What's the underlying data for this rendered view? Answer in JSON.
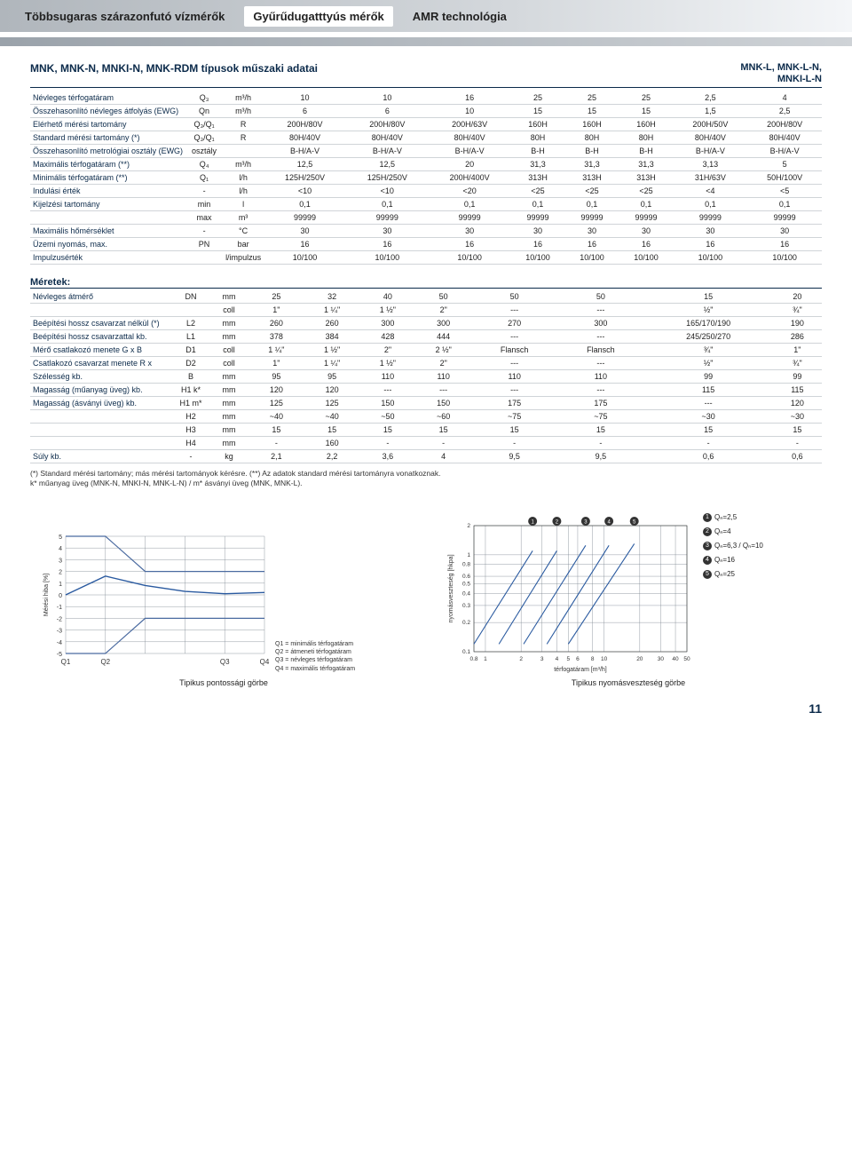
{
  "header": {
    "tabs": [
      "Többsugaras szárazonfutó vízmérők",
      "Gyűrűdugatttyús mérők",
      "AMR technológia"
    ]
  },
  "title": "MNK, MNK-N, MNKI-N, MNK-RDM típusok műszaki adatai",
  "right_title": "MNK-L, MNK-L-N,\nMNKI-L-N",
  "spec_table": {
    "rows": [
      {
        "label": "Névleges térfogatáram",
        "sym": "Q₃",
        "unit": "m³/h",
        "v": [
          "10",
          "10",
          "16",
          "25",
          "25",
          "25",
          "2,5",
          "4"
        ]
      },
      {
        "label": "Összehasonlító névleges átfolyás (EWG)",
        "sym": "Qn",
        "unit": "m³/h",
        "v": [
          "6",
          "6",
          "10",
          "15",
          "15",
          "15",
          "1,5",
          "2,5"
        ]
      },
      {
        "label": "Elérhető mérési tartomány",
        "sym": "Q₃/Q₁",
        "unit": "R",
        "v": [
          "200H/80V",
          "200H/80V",
          "200H/63V",
          "160H",
          "160H",
          "160H",
          "200H/50V",
          "200H/80V"
        ]
      },
      {
        "label": "Standard mérési tartomány (*)",
        "sym": "Q₃/Q₁",
        "unit": "R",
        "v": [
          "80H/40V",
          "80H/40V",
          "80H/40V",
          "80H",
          "80H",
          "80H",
          "80H/40V",
          "80H/40V"
        ]
      },
      {
        "label": "Összehasonlító metrológiai osztály (EWG)",
        "sym": "osztály",
        "unit": "",
        "v": [
          "B-H/A-V",
          "B-H/A-V",
          "B-H/A-V",
          "B-H",
          "B-H",
          "B-H",
          "B-H/A-V",
          "B-H/A-V"
        ]
      },
      {
        "label": "Maximális térfogatáram (**)",
        "sym": "Q₄",
        "unit": "m³/h",
        "v": [
          "12,5",
          "12,5",
          "20",
          "31,3",
          "31,3",
          "31,3",
          "3,13",
          "5"
        ]
      },
      {
        "label": "Minimális térfogatáram (**)",
        "sym": "Q₁",
        "unit": "l/h",
        "v": [
          "125H/250V",
          "125H/250V",
          "200H/400V",
          "313H",
          "313H",
          "313H",
          "31H/63V",
          "50H/100V"
        ]
      },
      {
        "label": "Indulási érték",
        "sym": "-",
        "unit": "l/h",
        "v": [
          "<10",
          "<10",
          "<20",
          "<25",
          "<25",
          "<25",
          "<4",
          "<5"
        ]
      },
      {
        "label": "Kijelzési tartomány",
        "sym": "min",
        "unit": "l",
        "v": [
          "0,1",
          "0,1",
          "0,1",
          "0,1",
          "0,1",
          "0,1",
          "0,1",
          "0,1"
        ]
      },
      {
        "label": "",
        "sym": "max",
        "unit": "m³",
        "v": [
          "99999",
          "99999",
          "99999",
          "99999",
          "99999",
          "99999",
          "99999",
          "99999"
        ]
      },
      {
        "label": "Maximális hőmérséklet",
        "sym": "-",
        "unit": "°C",
        "v": [
          "30",
          "30",
          "30",
          "30",
          "30",
          "30",
          "30",
          "30"
        ]
      },
      {
        "label": "Üzemi nyomás, max.",
        "sym": "PN",
        "unit": "bar",
        "v": [
          "16",
          "16",
          "16",
          "16",
          "16",
          "16",
          "16",
          "16"
        ]
      },
      {
        "label": "Impulzusérték",
        "sym": "",
        "unit": "l/impulzus",
        "v": [
          "10/100",
          "10/100",
          "10/100",
          "10/100",
          "10/100",
          "10/100",
          "10/100",
          "10/100"
        ]
      }
    ]
  },
  "dim_title": "Méretek:",
  "dim_table": {
    "rows": [
      {
        "label": "Névleges átmérő",
        "sym": "DN",
        "unit": "mm",
        "v": [
          "25",
          "32",
          "40",
          "50",
          "50",
          "50",
          "15",
          "20"
        ]
      },
      {
        "label": "",
        "sym": "",
        "unit": "coll",
        "v": [
          "1\"",
          "1 ¼\"",
          "1 ½\"",
          "2\"",
          "---",
          "---",
          "½\"",
          "¾\""
        ]
      },
      {
        "label": "Beépítési hossz csavarzat nélkül (*)",
        "sym": "L2",
        "unit": "mm",
        "v": [
          "260",
          "260",
          "300",
          "300",
          "270",
          "300",
          "165/170/190",
          "190"
        ]
      },
      {
        "label": "Beépítési hossz csavarzattal kb.",
        "sym": "L1",
        "unit": "mm",
        "v": [
          "378",
          "384",
          "428",
          "444",
          "---",
          "---",
          "245/250/270",
          "286"
        ]
      },
      {
        "label": "Mérő csatlakozó menete G x B",
        "sym": "D1",
        "unit": "coll",
        "v": [
          "1 ¼\"",
          "1 ½\"",
          "2\"",
          "2 ½\"",
          "Flansch",
          "Flansch",
          "¾\"",
          "1\""
        ]
      },
      {
        "label": "Csatlakozó csavarzat menete R x",
        "sym": "D2",
        "unit": "coll",
        "v": [
          "1\"",
          "1 ¼\"",
          "1 ½\"",
          "2\"",
          "---",
          "---",
          "½\"",
          "¾\""
        ]
      },
      {
        "label": "Szélesség kb.",
        "sym": "B",
        "unit": "mm",
        "v": [
          "95",
          "95",
          "110",
          "110",
          "110",
          "110",
          "99",
          "99"
        ]
      },
      {
        "label": "Magasság (műanyag üveg) kb.",
        "sym": "H1 k*",
        "unit": "mm",
        "v": [
          "120",
          "120",
          "---",
          "---",
          "---",
          "---",
          "115",
          "115"
        ]
      },
      {
        "label": "Magasság (ásványi üveg) kb.",
        "sym": "H1 m*",
        "unit": "mm",
        "v": [
          "125",
          "125",
          "150",
          "150",
          "175",
          "175",
          "---",
          "120"
        ]
      },
      {
        "label": "",
        "sym": "H2",
        "unit": "mm",
        "v": [
          "~40",
          "~40",
          "~50",
          "~60",
          "~75",
          "~75",
          "~30",
          "~30"
        ]
      },
      {
        "label": "",
        "sym": "H3",
        "unit": "mm",
        "v": [
          "15",
          "15",
          "15",
          "15",
          "15",
          "15",
          "15",
          "15"
        ]
      },
      {
        "label": "",
        "sym": "H4",
        "unit": "mm",
        "v": [
          "-",
          "160",
          "-",
          "-",
          "-",
          "-",
          "-",
          "-"
        ]
      },
      {
        "label": "Súly kb.",
        "sym": "-",
        "unit": "kg",
        "v": [
          "2,1",
          "2,2",
          "3,6",
          "4",
          "9,5",
          "9,5",
          "0,6",
          "0,6"
        ]
      }
    ]
  },
  "footnote": "(*) Standard mérési tartomány; más mérési tartományok kérésre. (**) Az adatok standard mérési tartományra vonatkoznak.\nk* műanyag üveg (MNK-N, MNKI-N, MNK-L-N) / m* ásványi üveg (MNK, MNK-L).",
  "chart1": {
    "type": "line",
    "title": "Tipikus pontossági görbe",
    "xlabel_ticks": [
      "Q1",
      "Q2",
      "Q3",
      "Q4"
    ],
    "ylabel": "Mérési hiba [%]",
    "ymin": -5,
    "ymax": 5,
    "ystep": 1,
    "toleranceColor": "#4a6aa0",
    "curveColor": "#2a5aa0",
    "legend": [
      "Q1 = minimális térfogatáram",
      "Q2 = átmeneti térfogatáram",
      "Q3 = névleges térfogatáram",
      "Q4 = maximális térfogatáram"
    ],
    "grid_color": "#7a848e",
    "tolerance_upper": [
      5,
      5,
      2,
      2,
      2,
      2
    ],
    "tolerance_lower": [
      -5,
      -5,
      -2,
      -2,
      -2,
      -2
    ],
    "curve": [
      0,
      1.6,
      0.8,
      0.3,
      0.1,
      0.2
    ]
  },
  "chart2": {
    "type": "loglog",
    "title": "Tipikus nyomásveszteség görbe",
    "xlabel": "térfogatáram [m³/h]",
    "ylabel": "nyomásveszteség [hkpa]",
    "xmin": 0.8,
    "xmax": 50,
    "ymin": 0.1,
    "ymax": 2,
    "xticks": [
      0.8,
      1,
      2,
      3,
      4,
      5,
      6,
      8,
      10,
      20,
      30,
      40,
      50
    ],
    "yticks": [
      0.1,
      0.2,
      0.3,
      0.4,
      0.5,
      0.6,
      0.8,
      1,
      2
    ],
    "grid_color": "#7a848e",
    "line_color": "#2a5aa0",
    "series_labels": [
      "1",
      "2",
      "3",
      "4",
      "5"
    ],
    "series": [
      [
        [
          0.8,
          0.12
        ],
        [
          2.5,
          1.1
        ]
      ],
      [
        [
          1.3,
          0.12
        ],
        [
          4,
          1.1
        ]
      ],
      [
        [
          2.1,
          0.12
        ],
        [
          7,
          1.25
        ]
      ],
      [
        [
          3.3,
          0.12
        ],
        [
          11,
          1.25
        ]
      ],
      [
        [
          5,
          0.12
        ],
        [
          18,
          1.3
        ]
      ]
    ],
    "legend": [
      "Qₙ=2,5",
      "Qₙ=4",
      "Qₙ=6,3 / Qₙ=10",
      "Qₙ=16",
      "Qₙ=25"
    ]
  },
  "page_number": "11"
}
